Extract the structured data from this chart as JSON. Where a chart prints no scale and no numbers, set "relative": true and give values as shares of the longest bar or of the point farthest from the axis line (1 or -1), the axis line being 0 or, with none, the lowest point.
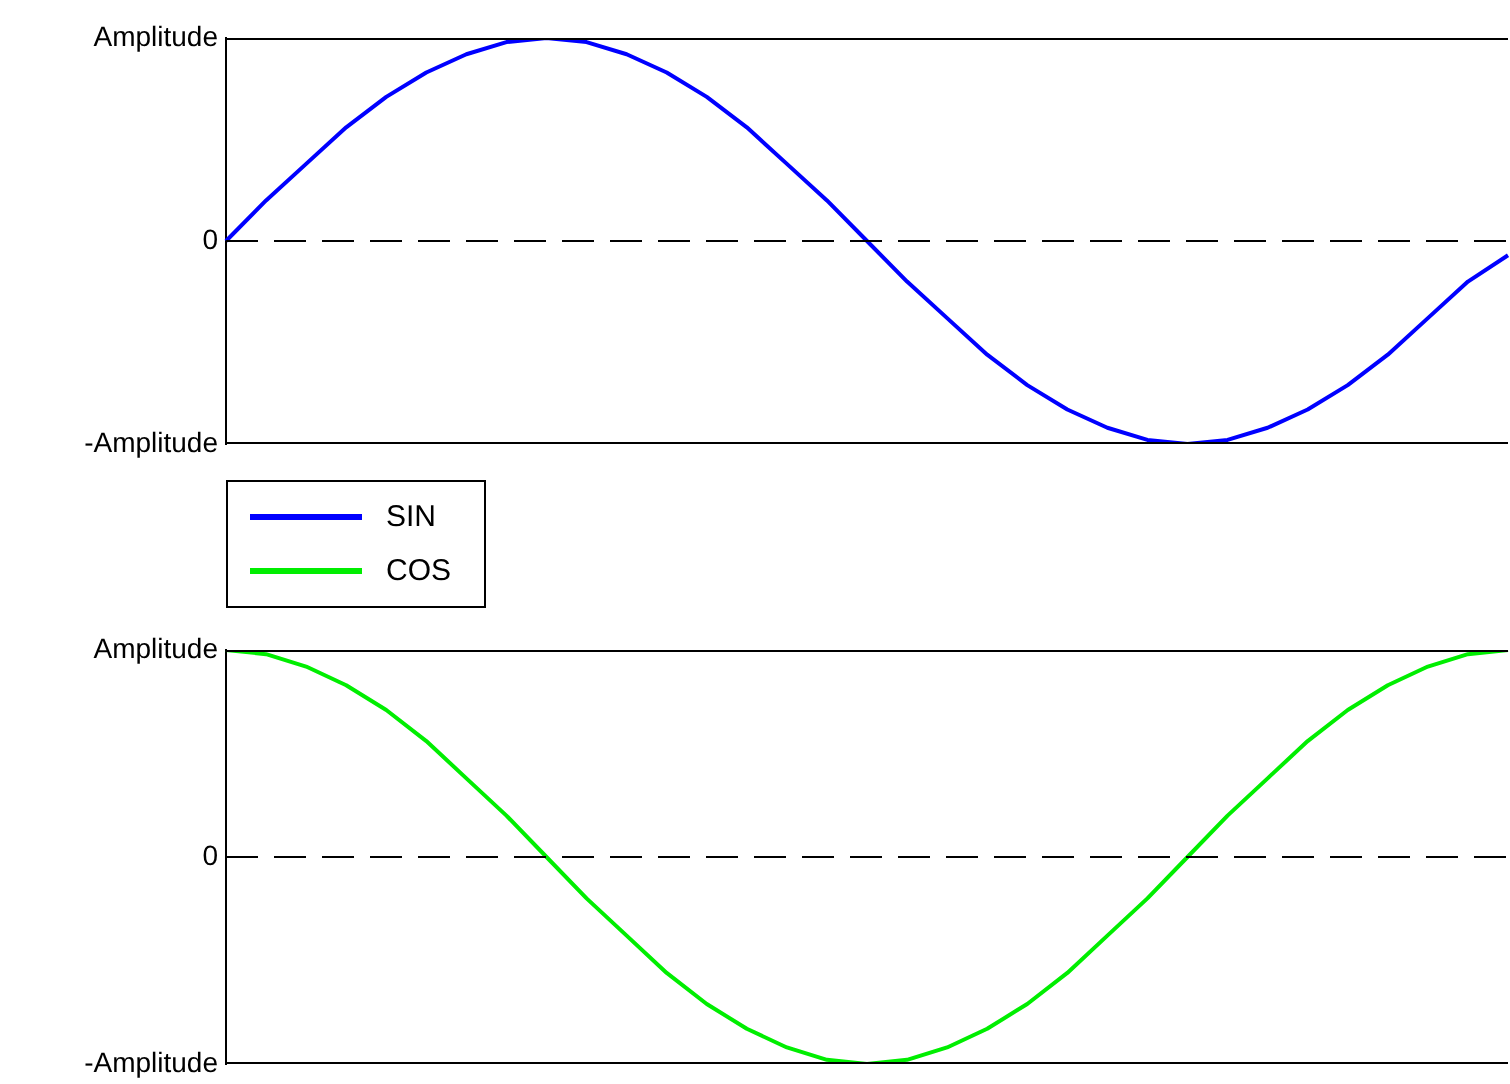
{
  "chart_data": [
    {
      "type": "line",
      "categories": [
        null,
        null,
        null,
        null,
        null,
        null,
        null,
        null,
        null,
        null,
        null,
        null,
        null,
        null,
        null,
        null,
        null,
        null,
        null,
        null,
        null,
        null,
        null,
        null,
        null,
        null,
        null,
        null,
        null,
        null,
        null,
        null,
        null
      ],
      "series": [
        {
          "name": "SIN",
          "color": "#0000ff",
          "values": [
            0,
            0.2,
            0.38,
            0.56,
            0.71,
            0.83,
            0.92,
            0.98,
            1,
            0.98,
            0.92,
            0.83,
            0.71,
            0.56,
            0.38,
            0.2,
            0,
            -0.2,
            -0.38,
            -0.56,
            -0.71,
            -0.83,
            -0.92,
            -0.98,
            -1,
            -0.98,
            -0.92,
            -0.83,
            -0.71,
            -0.56,
            -0.38,
            -0.2,
            -0.07
          ]
        }
      ],
      "relative": true,
      "annotations": [
        "Amplitude",
        "0",
        "-Amplitude"
      ],
      "ref_lines": [
        {
          "axis": "y",
          "value": 0,
          "color": "#000000",
          "line_style": "dashed"
        }
      ],
      "legend": "bottom left",
      "marker": "none"
    },
    {
      "type": "line",
      "categories": [
        null,
        null,
        null,
        null,
        null,
        null,
        null,
        null,
        null,
        null,
        null,
        null,
        null,
        null,
        null,
        null,
        null,
        null,
        null,
        null,
        null,
        null,
        null,
        null,
        null,
        null,
        null,
        null,
        null,
        null,
        null,
        null,
        null
      ],
      "series": [
        {
          "name": "COS",
          "color": "#00ee00",
          "values": [
            1,
            0.98,
            0.92,
            0.83,
            0.71,
            0.56,
            0.38,
            0.2,
            0,
            -0.2,
            -0.38,
            -0.56,
            -0.71,
            -0.83,
            -0.92,
            -0.98,
            -1,
            -0.98,
            -0.92,
            -0.83,
            -0.71,
            -0.56,
            -0.38,
            -0.2,
            0,
            0.2,
            0.38,
            0.56,
            0.71,
            0.83,
            0.92,
            0.98,
            1
          ]
        }
      ],
      "relative": true,
      "annotations": [
        "Amplitude",
        "0",
        "-Amplitude"
      ],
      "ref_lines": [
        {
          "axis": "y",
          "value": 0,
          "color": "#000000",
          "line_style": "dashed"
        }
      ],
      "legend": "top left",
      "marker": "none"
    }
  ]
}
